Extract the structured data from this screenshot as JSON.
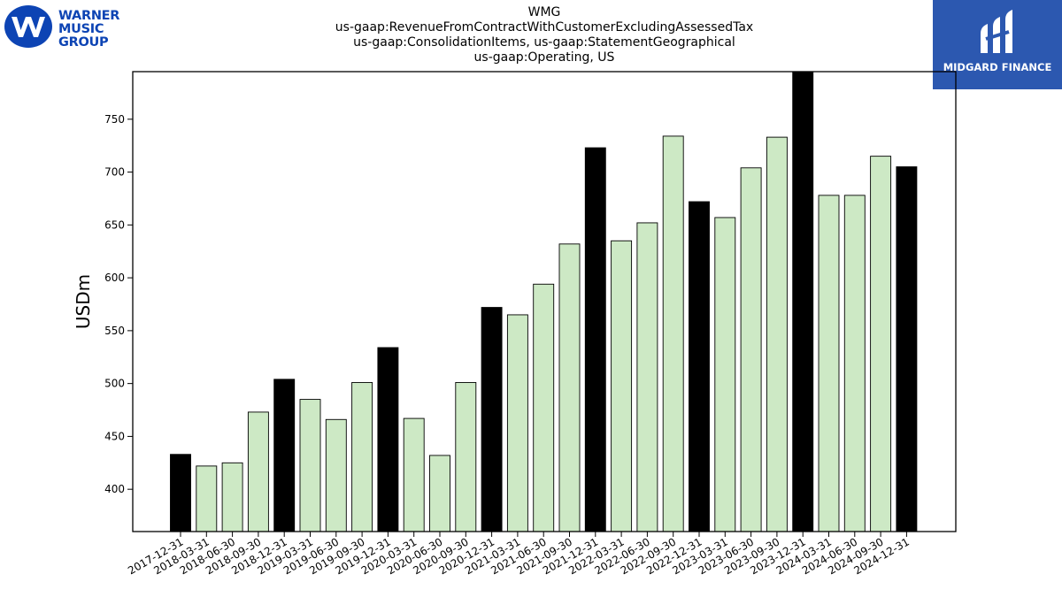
{
  "header": {
    "title_lines": [
      "WMG",
      "us-gaap:RevenueFromContractWithCustomerExcludingAssessedTax",
      "us-gaap:ConsolidationItems, us-gaap:StatementGeographical",
      "us-gaap:Operating, US"
    ]
  },
  "logos": {
    "wmg": {
      "lines": [
        "WARNER",
        "MUSIC",
        "GROUP"
      ],
      "color": "#0d44b4"
    },
    "midgard": {
      "label": "MIDGARD FINANCE",
      "color": "#2c58b0"
    }
  },
  "chart_data": {
    "type": "bar",
    "ylabel": "USDm",
    "ylim": [
      360,
      795
    ],
    "yticks": [
      400,
      450,
      500,
      550,
      600,
      650,
      700,
      750
    ],
    "colors": {
      "q4": "#000000",
      "other": "#cde9c5"
    },
    "categories": [
      "2017-12-31",
      "2018-03-31",
      "2018-06-30",
      "2018-09-30",
      "2018-12-31",
      "2019-03-31",
      "2019-06-30",
      "2019-09-30",
      "2019-12-31",
      "2020-03-31",
      "2020-06-30",
      "2020-09-30",
      "2020-12-31",
      "2021-03-31",
      "2021-06-30",
      "2021-09-30",
      "2021-12-31",
      "2022-03-31",
      "2022-06-30",
      "2022-09-30",
      "2022-12-31",
      "2023-03-31",
      "2023-06-30",
      "2023-09-30",
      "2023-12-31",
      "2024-03-31",
      "2024-06-30",
      "2024-09-30",
      "2024-12-31"
    ],
    "values": [
      433,
      422,
      425,
      473,
      504,
      485,
      466,
      501,
      534,
      467,
      432,
      501,
      572,
      565,
      594,
      632,
      723,
      635,
      652,
      734,
      672,
      657,
      704,
      733,
      797,
      678,
      678,
      715,
      705
    ],
    "highlight": [
      true,
      false,
      false,
      false,
      true,
      false,
      false,
      false,
      true,
      false,
      false,
      false,
      true,
      false,
      false,
      false,
      true,
      false,
      false,
      false,
      true,
      false,
      false,
      false,
      true,
      false,
      false,
      false,
      true
    ]
  }
}
